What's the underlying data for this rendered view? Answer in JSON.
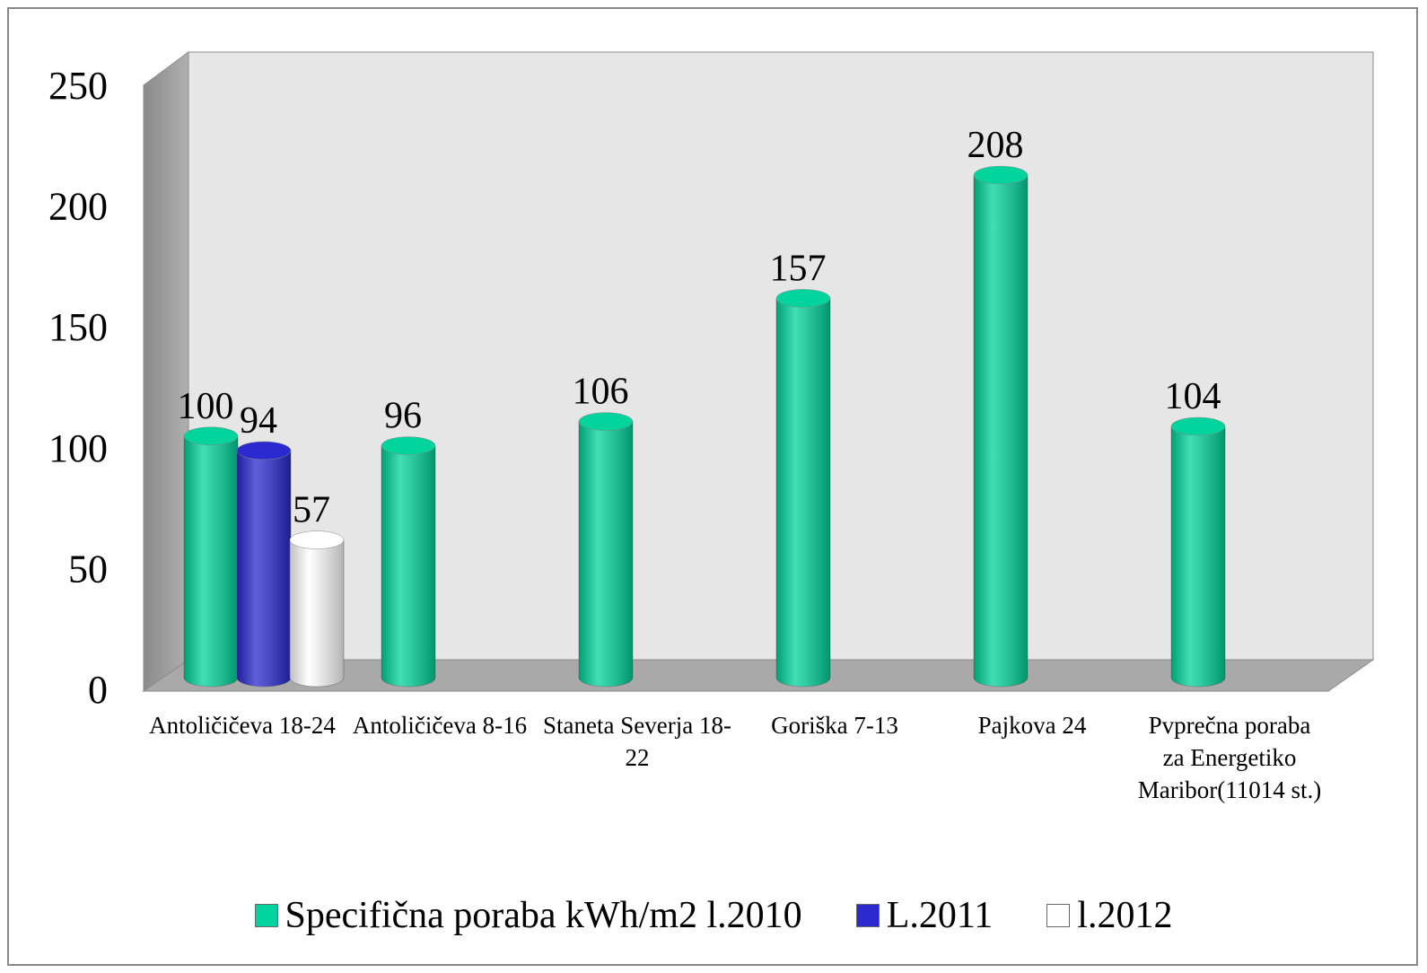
{
  "chart_data": {
    "type": "bar",
    "categories": [
      "Antoličičeva 18-24",
      "Antoličičeva 8-16",
      "Staneta Severja 18-22",
      "Goriška 7-13",
      "Pajkova 24",
      "Pvprečna poraba za Energetiko Maribor(11014 st.)"
    ],
    "series": [
      {
        "name": "Specifična poraba kWh/m2 l.2010",
        "color": "#00d49c",
        "values": [
          100,
          96,
          106,
          157,
          208,
          104
        ]
      },
      {
        "name": "L.2011",
        "color": "#2a2ad0",
        "values": [
          94,
          null,
          null,
          null,
          null,
          null
        ]
      },
      {
        "name": "l.2012",
        "color": "#ffffff",
        "values": [
          57,
          null,
          null,
          null,
          null,
          null
        ]
      }
    ],
    "ylim": [
      0,
      250
    ],
    "yticks": [
      0,
      50,
      100,
      150,
      200,
      250
    ],
    "grid": false,
    "legend": "bottom"
  }
}
